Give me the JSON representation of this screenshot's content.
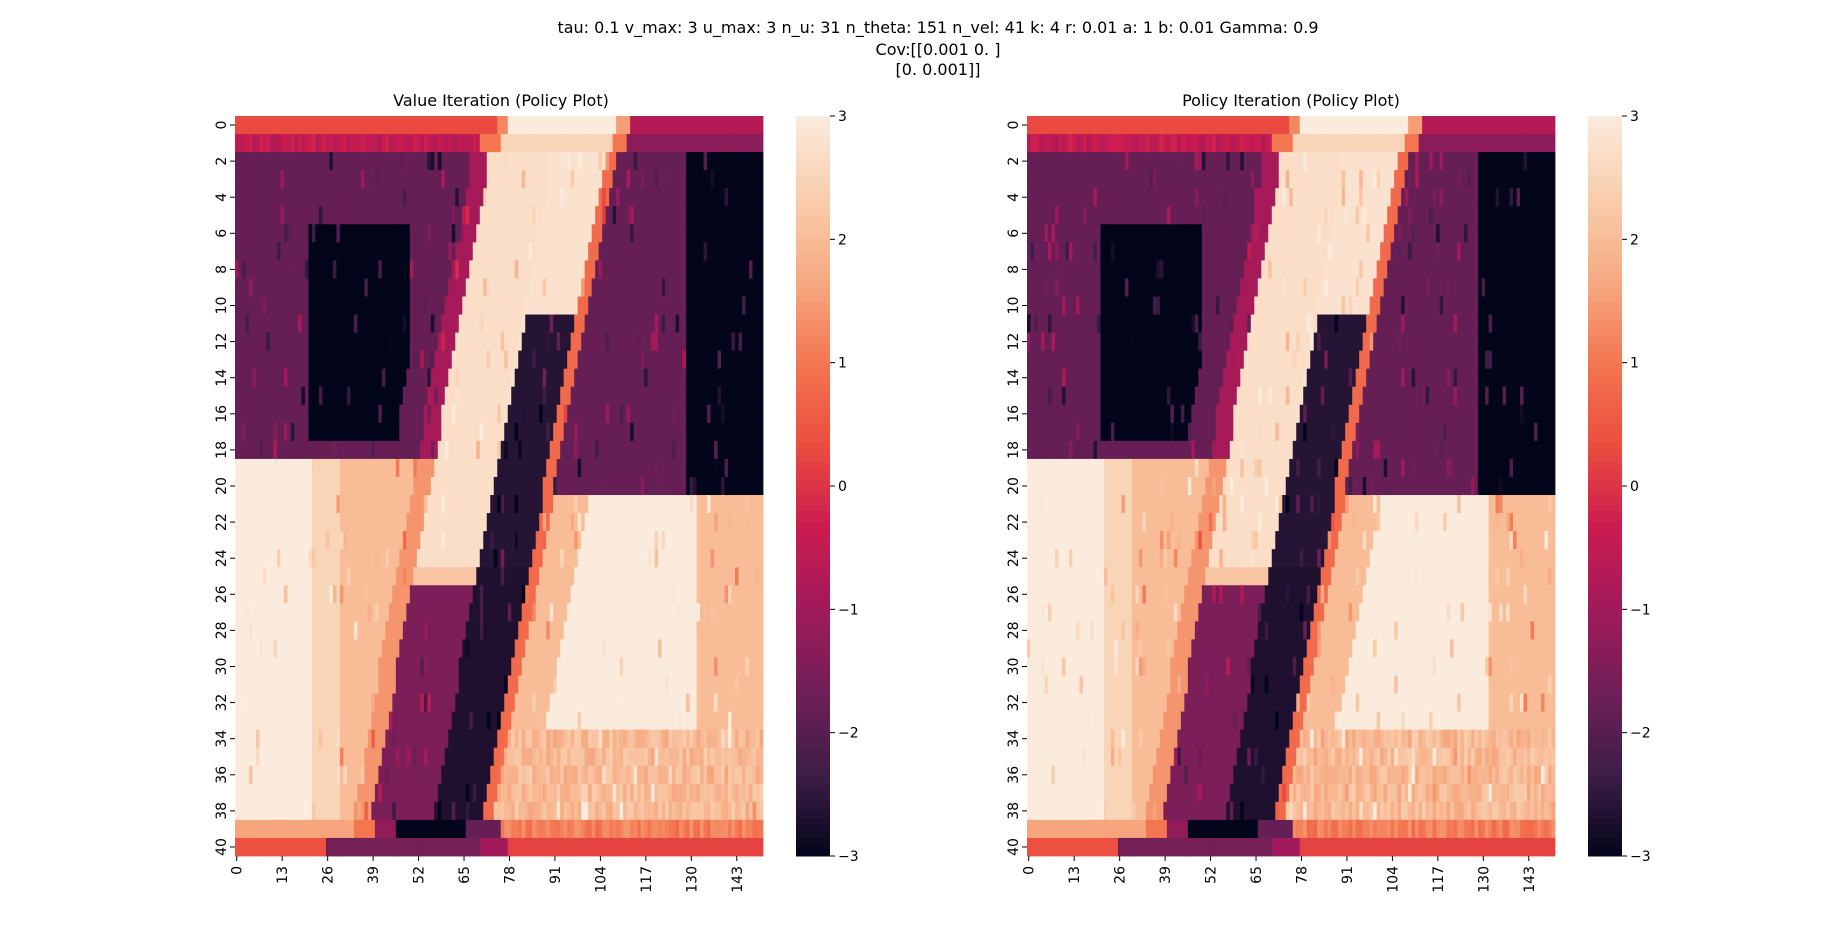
{
  "figure": {
    "suptitle_lines": [
      "tau: 0.1 v_max: 3 u_max: 3 n_u: 31 n_theta: 151 n_vel: 41 k: 4 r: 0.01 a: 1 b: 0.01 Gamma: 0.9",
      "Cov:[[0.001 0.    ]",
      "[0.    0.001]]"
    ]
  },
  "colormap": {
    "name": "rocket",
    "stops": [
      "#03051A",
      "#3E1E47",
      "#701F57",
      "#A11A5B",
      "#CB1B4F",
      "#EC4D3E",
      "#F37651",
      "#F6AA82",
      "#F9CDAC",
      "#FAEBDD"
    ]
  },
  "chart_data": [
    {
      "type": "heatmap",
      "title": "Value Iteration (Policy Plot)",
      "n_rows": 41,
      "n_cols": 151,
      "xticklabels": [
        "0",
        "13",
        "26",
        "39",
        "52",
        "65",
        "78",
        "91",
        "104",
        "117",
        "130",
        "143"
      ],
      "yticklabels": [
        "0",
        "2",
        "4",
        "6",
        "8",
        "10",
        "12",
        "14",
        "16",
        "18",
        "20",
        "22",
        "24",
        "26",
        "28",
        "30",
        "32",
        "34",
        "36",
        "38",
        "40"
      ],
      "colorbar_ticks": [
        "3",
        "2",
        "1",
        "0",
        "−1",
        "−2",
        "−3"
      ],
      "vmin": -3,
      "vmax": 3,
      "values_note": "policy values range -3 to 3; main structure: diagonal bands of +3/+2 (light) and -3/-2 (dark), top and bottom rows near 0/+1"
    },
    {
      "type": "heatmap",
      "title": "Policy Iteration (Policy Plot)",
      "n_rows": 41,
      "n_cols": 151,
      "xticklabels": [
        "0",
        "13",
        "26",
        "39",
        "52",
        "65",
        "78",
        "91",
        "104",
        "117",
        "130",
        "143"
      ],
      "yticklabels": [
        "0",
        "2",
        "4",
        "6",
        "8",
        "10",
        "12",
        "14",
        "16",
        "18",
        "20",
        "22",
        "24",
        "26",
        "28",
        "30",
        "32",
        "34",
        "36",
        "38",
        "40"
      ],
      "colorbar_ticks": [
        "3",
        "2",
        "1",
        "0",
        "−1",
        "−2",
        "−3"
      ],
      "vmin": -3,
      "vmax": 3
    }
  ]
}
